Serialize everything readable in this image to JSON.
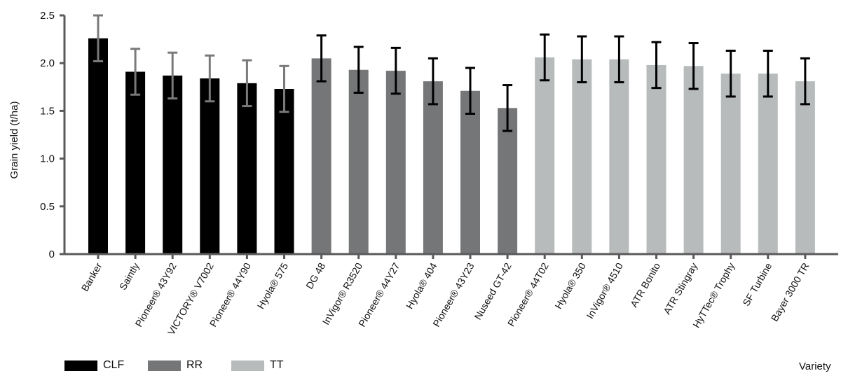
{
  "chart_data": {
    "type": "bar",
    "title": "",
    "xlabel": "Variety",
    "ylabel": "Grain yield (t/ha)",
    "ylim": [
      0,
      2.5
    ],
    "yticks": [
      "0",
      "0.5",
      "1.0",
      "1.5",
      "2.0",
      "2.5"
    ],
    "grid": false,
    "legend_position": "bottom-left",
    "groups": [
      {
        "name": "CLF",
        "color": "#000000",
        "errorbar_color": "#7a7a7a"
      },
      {
        "name": "RR",
        "color": "#747678",
        "errorbar_color": "#000000"
      },
      {
        "name": "TT",
        "color": "#b8bbbb",
        "errorbar_color": "#000000"
      }
    ],
    "categories": [
      "Banker",
      "Saintly",
      "Pioneer® 43Y92",
      "VICTORY® V7002",
      "Pioneer® 44Y90",
      "Hyola® 575",
      "DG 48",
      "InVigor® R3520",
      "Pioneer® 44Y27",
      "Hyola® 404",
      "Pioneer® 43Y23",
      "Nuseed GT-42",
      "Pioneer® 44T02",
      "Hyola® 350",
      "InVigor® 4510",
      "ATR Bonito",
      "ATR Stingray",
      "HyTTec® Trophy",
      "SF Turbine",
      "Bayer 3000 TR"
    ],
    "category_group": [
      "CLF",
      "CLF",
      "CLF",
      "CLF",
      "CLF",
      "CLF",
      "RR",
      "RR",
      "RR",
      "RR",
      "RR",
      "RR",
      "TT",
      "TT",
      "TT",
      "TT",
      "TT",
      "TT",
      "TT",
      "TT"
    ],
    "values": [
      2.26,
      1.91,
      1.87,
      1.84,
      1.79,
      1.73,
      2.05,
      1.93,
      1.92,
      1.81,
      1.71,
      1.53,
      2.06,
      2.04,
      2.04,
      1.98,
      1.97,
      1.89,
      1.89,
      1.81
    ],
    "errors": [
      0.24,
      0.24,
      0.24,
      0.24,
      0.24,
      0.24,
      0.24,
      0.24,
      0.24,
      0.24,
      0.24,
      0.24,
      0.24,
      0.24,
      0.24,
      0.24,
      0.24,
      0.24,
      0.24,
      0.24
    ]
  },
  "legend": {
    "items": [
      {
        "label": "CLF",
        "color": "#000000"
      },
      {
        "label": "RR",
        "color": "#747678"
      },
      {
        "label": "TT",
        "color": "#b8bbbb"
      }
    ]
  },
  "axis": {
    "x_title": "Variety",
    "y_title": "Grain yield (t/ha)"
  }
}
